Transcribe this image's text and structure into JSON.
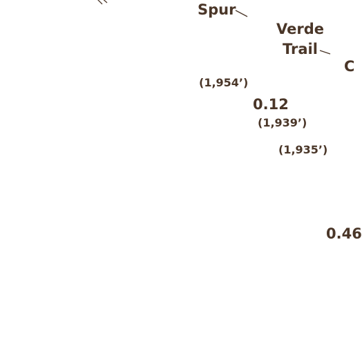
{
  "labels": {
    "spur": "Spur",
    "verde_line1": "Verde",
    "verde_line2": "Trail",
    "cut_letter": "C",
    "mileage_main": "0.12",
    "mileage_cut": "0.46",
    "elev_1": "(1,954’)",
    "elev_2": "(1,939’)",
    "elev_3": "(1,935’)"
  },
  "colors": {
    "label": "#4a3628",
    "background": "#ffffff"
  }
}
